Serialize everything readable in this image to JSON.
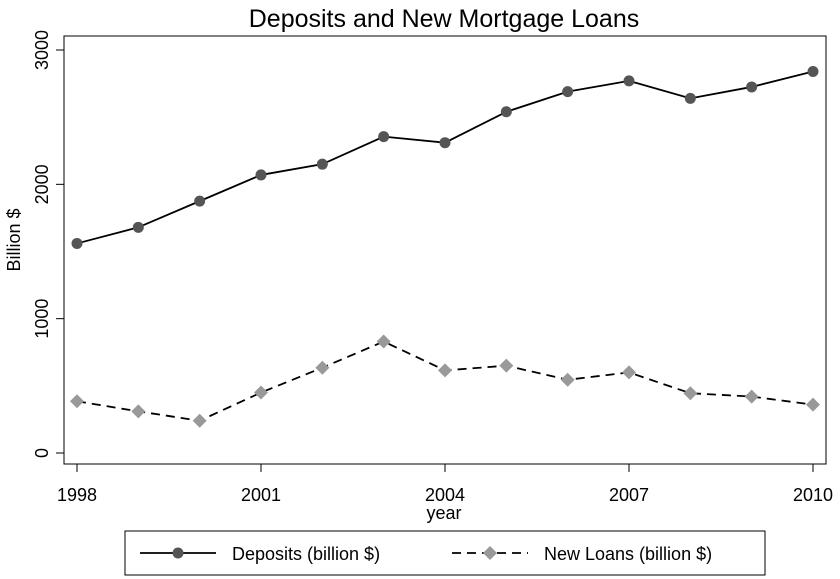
{
  "chart_data": {
    "type": "line",
    "title": "Deposits and New Mortgage Loans",
    "xlabel": "year",
    "ylabel": "Billion $",
    "x": [
      1998,
      1999,
      2000,
      2001,
      2002,
      2003,
      2004,
      2005,
      2006,
      2007,
      2008,
      2009,
      2010
    ],
    "xticks": [
      1998,
      2001,
      2004,
      2007,
      2010
    ],
    "yticks": [
      0,
      1000,
      2000,
      3000
    ],
    "xlim": [
      1998,
      2010
    ],
    "ylim": [
      0,
      3000
    ],
    "grid": false,
    "legend_position": "bottom",
    "series": [
      {
        "name": "Deposits (billion $)",
        "values": [
          1560,
          1680,
          1875,
          2070,
          2150,
          2355,
          2310,
          2540,
          2690,
          2770,
          2640,
          2725,
          2840
        ],
        "line_style": "solid",
        "marker": "circle",
        "color": "#555555",
        "line_color": "#000000"
      },
      {
        "name": "New Loans (billion $)",
        "values": [
          385,
          310,
          240,
          450,
          635,
          830,
          615,
          650,
          545,
          600,
          445,
          420,
          360
        ],
        "line_style": "dashed",
        "marker": "diamond",
        "color": "#999999",
        "line_color": "#000000"
      }
    ]
  }
}
